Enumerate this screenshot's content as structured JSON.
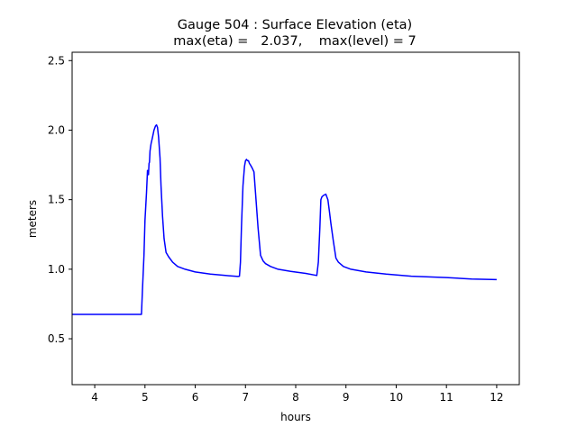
{
  "chart_data": {
    "type": "line",
    "title_line1": "Gauge 504 : Surface Elevation (eta)",
    "title_line2": "max(eta) =   2.037,    max(level) = 7",
    "xlabel": "hours",
    "ylabel": "meters",
    "xlim": [
      3.55,
      12.45
    ],
    "ylim": [
      0.17,
      2.56
    ],
    "xticks": [
      4,
      5,
      6,
      7,
      8,
      9,
      10,
      11,
      12
    ],
    "yticks": [
      0.5,
      1.0,
      1.5,
      2.0,
      2.5
    ],
    "xtick_labels": [
      "4",
      "5",
      "6",
      "7",
      "8",
      "9",
      "10",
      "11",
      "12"
    ],
    "ytick_labels": [
      "0.5",
      "1.0",
      "1.5",
      "2.0",
      "2.5"
    ],
    "line_color": "#0000ff",
    "series": [
      {
        "name": "eta",
        "x": [
          3.55,
          4.93,
          4.95,
          4.98,
          5.0,
          5.03,
          5.05,
          5.07,
          5.08,
          5.09,
          5.1,
          5.12,
          5.15,
          5.18,
          5.21,
          5.23,
          5.25,
          5.27,
          5.3,
          5.32,
          5.35,
          5.38,
          5.42,
          5.47,
          5.55,
          5.65,
          5.8,
          6.0,
          6.3,
          6.6,
          6.85,
          6.88,
          6.9,
          6.92,
          6.95,
          6.98,
          7.0,
          7.02,
          7.04,
          7.06,
          7.08,
          7.1,
          7.13,
          7.17,
          7.2,
          7.25,
          7.3,
          7.35,
          7.4,
          7.5,
          7.65,
          7.9,
          8.2,
          8.42,
          8.45,
          8.48,
          8.5,
          8.52,
          8.55,
          8.6,
          8.64,
          8.67,
          8.7,
          8.75,
          8.8,
          8.85,
          8.95,
          9.1,
          9.4,
          9.8,
          10.3,
          11.0,
          11.5,
          12.0
        ],
        "y": [
          0.675,
          0.675,
          0.85,
          1.1,
          1.35,
          1.55,
          1.71,
          1.68,
          1.76,
          1.77,
          1.85,
          1.9,
          1.95,
          2.0,
          2.03,
          2.037,
          2.02,
          1.95,
          1.8,
          1.6,
          1.38,
          1.22,
          1.12,
          1.09,
          1.05,
          1.02,
          1.0,
          0.98,
          0.965,
          0.955,
          0.948,
          0.95,
          1.05,
          1.3,
          1.6,
          1.74,
          1.78,
          1.79,
          1.78,
          1.78,
          1.76,
          1.75,
          1.73,
          1.7,
          1.55,
          1.3,
          1.1,
          1.06,
          1.04,
          1.02,
          1.0,
          0.985,
          0.97,
          0.955,
          1.05,
          1.3,
          1.5,
          1.52,
          1.53,
          1.54,
          1.5,
          1.42,
          1.33,
          1.2,
          1.08,
          1.05,
          1.02,
          1.0,
          0.98,
          0.965,
          0.95,
          0.94,
          0.93,
          0.925
        ]
      }
    ]
  }
}
